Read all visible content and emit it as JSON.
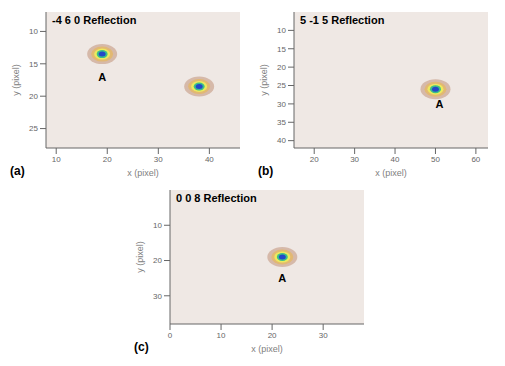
{
  "chart_data": [
    {
      "type": "scatter",
      "title": "-4 6 0 Reflection",
      "x_label": "x (pixel)",
      "y_label": "y (pixel)",
      "xlim": [
        8,
        46
      ],
      "xticks": [
        10,
        20,
        30,
        40
      ],
      "ylim": [
        7,
        28
      ],
      "yticks": [
        10,
        15,
        20,
        25
      ],
      "spots": [
        {
          "x": 19,
          "y": 13.5
        },
        {
          "x": 38,
          "y": 18.5
        }
      ],
      "annotations": [
        {
          "text": "(a)"
        },
        {
          "text": "A",
          "x": 19,
          "y": 17
        }
      ]
    },
    {
      "type": "scatter",
      "title": "5 -1 5 Reflection",
      "x_label": "x (pixel)",
      "y_label": "y (pixel)",
      "xlim": [
        15,
        63
      ],
      "xticks": [
        20,
        30,
        40,
        50,
        60
      ],
      "ylim": [
        5,
        42
      ],
      "yticks": [
        10,
        15,
        20,
        25,
        30,
        35,
        40
      ],
      "spots": [
        {
          "x": 50,
          "y": 26
        }
      ],
      "annotations": [
        {
          "text": "(b)"
        },
        {
          "text": "A",
          "x": 51,
          "y": 30
        }
      ]
    },
    {
      "type": "scatter",
      "title": "0 0 8 Reflection",
      "x_label": "x (pixel)",
      "y_label": "y (pixel)",
      "xlim": [
        0,
        38
      ],
      "xticks": [
        0,
        10,
        20,
        30
      ],
      "ylim": [
        0,
        38
      ],
      "yticks": [
        10,
        20,
        30
      ],
      "spots": [
        {
          "x": 22,
          "y": 19
        }
      ],
      "annotations": [
        {
          "text": "(c)"
        },
        {
          "text": "A",
          "x": 22,
          "y": 25
        }
      ]
    }
  ]
}
